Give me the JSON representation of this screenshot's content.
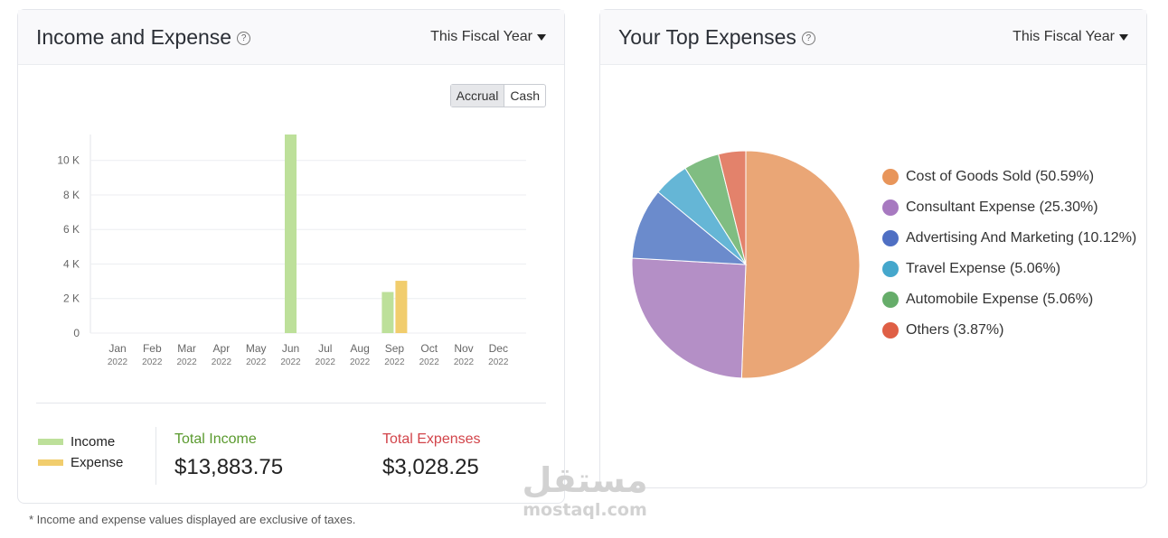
{
  "income_expense": {
    "title": "Income and Expense",
    "period": "This Fiscal Year",
    "toggle": {
      "accrual": "Accrual",
      "cash": "Cash"
    },
    "legend": {
      "income": "Income",
      "expense": "Expense"
    },
    "total_income_label": "Total Income",
    "total_income_value": "$13,883.75",
    "total_expense_label": "Total Expenses",
    "total_expense_value": "$3,028.25",
    "colors": {
      "income": "#bde09a",
      "expense": "#f1cd6d"
    }
  },
  "top_expenses": {
    "title": "Your Top Expenses",
    "period": "This Fiscal Year"
  },
  "footnote": "* Income and expense values displayed are exclusive of taxes.",
  "watermark": {
    "arabic": "مستقل",
    "latin": "mostaql.com"
  },
  "chart_data": [
    {
      "type": "bar",
      "categories": [
        "Jan",
        "Feb",
        "Mar",
        "Apr",
        "May",
        "Jun",
        "Jul",
        "Aug",
        "Sep",
        "Oct",
        "Nov",
        "Dec"
      ],
      "category_years": [
        "2022",
        "2022",
        "2022",
        "2022",
        "2022",
        "2022",
        "2022",
        "2022",
        "2022",
        "2022",
        "2022",
        "2022"
      ],
      "series": [
        {
          "name": "Income",
          "color": "#bde09a",
          "values": [
            0,
            0,
            0,
            0,
            0,
            11500,
            0,
            0,
            2380,
            0,
            0,
            0
          ]
        },
        {
          "name": "Expense",
          "color": "#f1cd6d",
          "values": [
            0,
            0,
            0,
            0,
            0,
            0,
            0,
            0,
            3028,
            0,
            0,
            0
          ]
        }
      ],
      "yticks": [
        0,
        2000,
        4000,
        6000,
        8000,
        10000
      ],
      "ytick_labels": [
        "0",
        "2 K",
        "4 K",
        "6 K",
        "8 K",
        "10 K"
      ],
      "ylim": [
        0,
        11500
      ],
      "grid": true
    },
    {
      "type": "pie",
      "slices": [
        {
          "label": "Cost of Goods Sold (50.59%)",
          "value": 50.59,
          "color": "#eaa676",
          "legend_color": "#e8955a"
        },
        {
          "label": "Consultant Expense (25.30%)",
          "value": 25.3,
          "color": "#b48fc6",
          "legend_color": "#a779c0"
        },
        {
          "label": "Advertising And Marketing (10.12%)",
          "value": 10.12,
          "color": "#6b8bcc",
          "legend_color": "#4f6fc3"
        },
        {
          "label": "Travel Expense (5.06%)",
          "value": 5.06,
          "color": "#65b6d6",
          "legend_color": "#45a7cc"
        },
        {
          "label": "Automobile Expense (5.06%)",
          "value": 5.06,
          "color": "#80bd82",
          "legend_color": "#66ad6a"
        },
        {
          "label": "Others (3.87%)",
          "value": 3.87,
          "color": "#e3826b",
          "legend_color": "#df5f45"
        }
      ],
      "legend_position": "right"
    }
  ]
}
